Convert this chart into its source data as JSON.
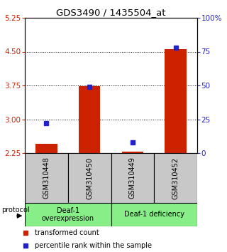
{
  "title": "GDS3490 / 1435504_at",
  "categories": [
    "GSM310448",
    "GSM310450",
    "GSM310449",
    "GSM310452"
  ],
  "red_values": [
    2.46,
    3.73,
    2.28,
    4.55
  ],
  "blue_percentiles": [
    22,
    49,
    8,
    78
  ],
  "ylim_left": [
    2.25,
    5.25
  ],
  "ylim_right": [
    0,
    100
  ],
  "yticks_left": [
    2.25,
    3.0,
    3.75,
    4.5,
    5.25
  ],
  "yticks_right": [
    0,
    25,
    50,
    75,
    100
  ],
  "ytick_labels_right": [
    "0",
    "25",
    "50",
    "75",
    "100%"
  ],
  "bar_color": "#cc2200",
  "marker_color": "#2222cc",
  "group1_label": "Deaf-1\noverexpression",
  "group2_label": "Deaf-1 deficiency",
  "group_color": "#88ee88",
  "protocol_label": "protocol",
  "legend_red": "transformed count",
  "legend_blue": "percentile rank within the sample",
  "tick_color_left": "#cc2200",
  "tick_color_right": "#2222cc",
  "bar_bottom": 2.25,
  "bar_width": 0.5,
  "marker_size": 4
}
